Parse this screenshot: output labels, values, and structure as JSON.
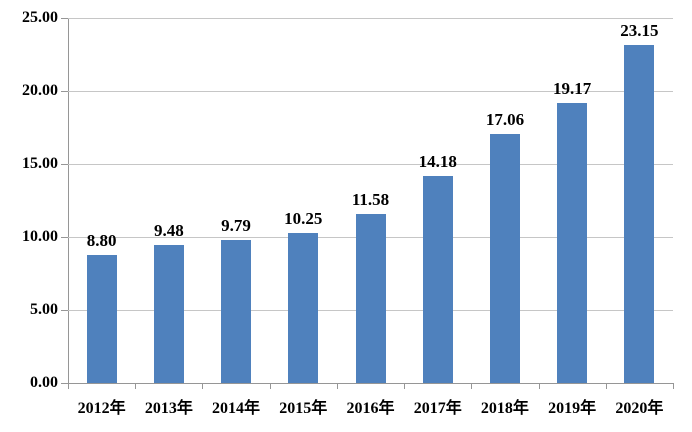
{
  "chart_data": {
    "type": "bar",
    "title": "",
    "xlabel": "",
    "ylabel": "",
    "categories": [
      "2012年",
      "2013年",
      "2014年",
      "2015年",
      "2016年",
      "2017年",
      "2018年",
      "2019年",
      "2020年"
    ],
    "values": [
      8.8,
      9.48,
      9.79,
      10.25,
      11.58,
      14.18,
      17.06,
      19.17,
      23.15
    ],
    "value_labels": [
      "8.80",
      "9.48",
      "9.79",
      "10.25",
      "11.58",
      "14.18",
      "17.06",
      "19.17",
      "23.15"
    ],
    "ylim": [
      0,
      25
    ],
    "y_tick_step": 5,
    "y_tick_labels": [
      "0.00",
      "5.00",
      "10.00",
      "15.00",
      "20.00",
      "25.00"
    ],
    "grid": true,
    "legend": "none",
    "colors": {
      "bar_fill": "#4f81bd",
      "gridline": "#c6c6c6",
      "axis": "#969696",
      "text": "#000000",
      "background": "#ffffff"
    }
  }
}
